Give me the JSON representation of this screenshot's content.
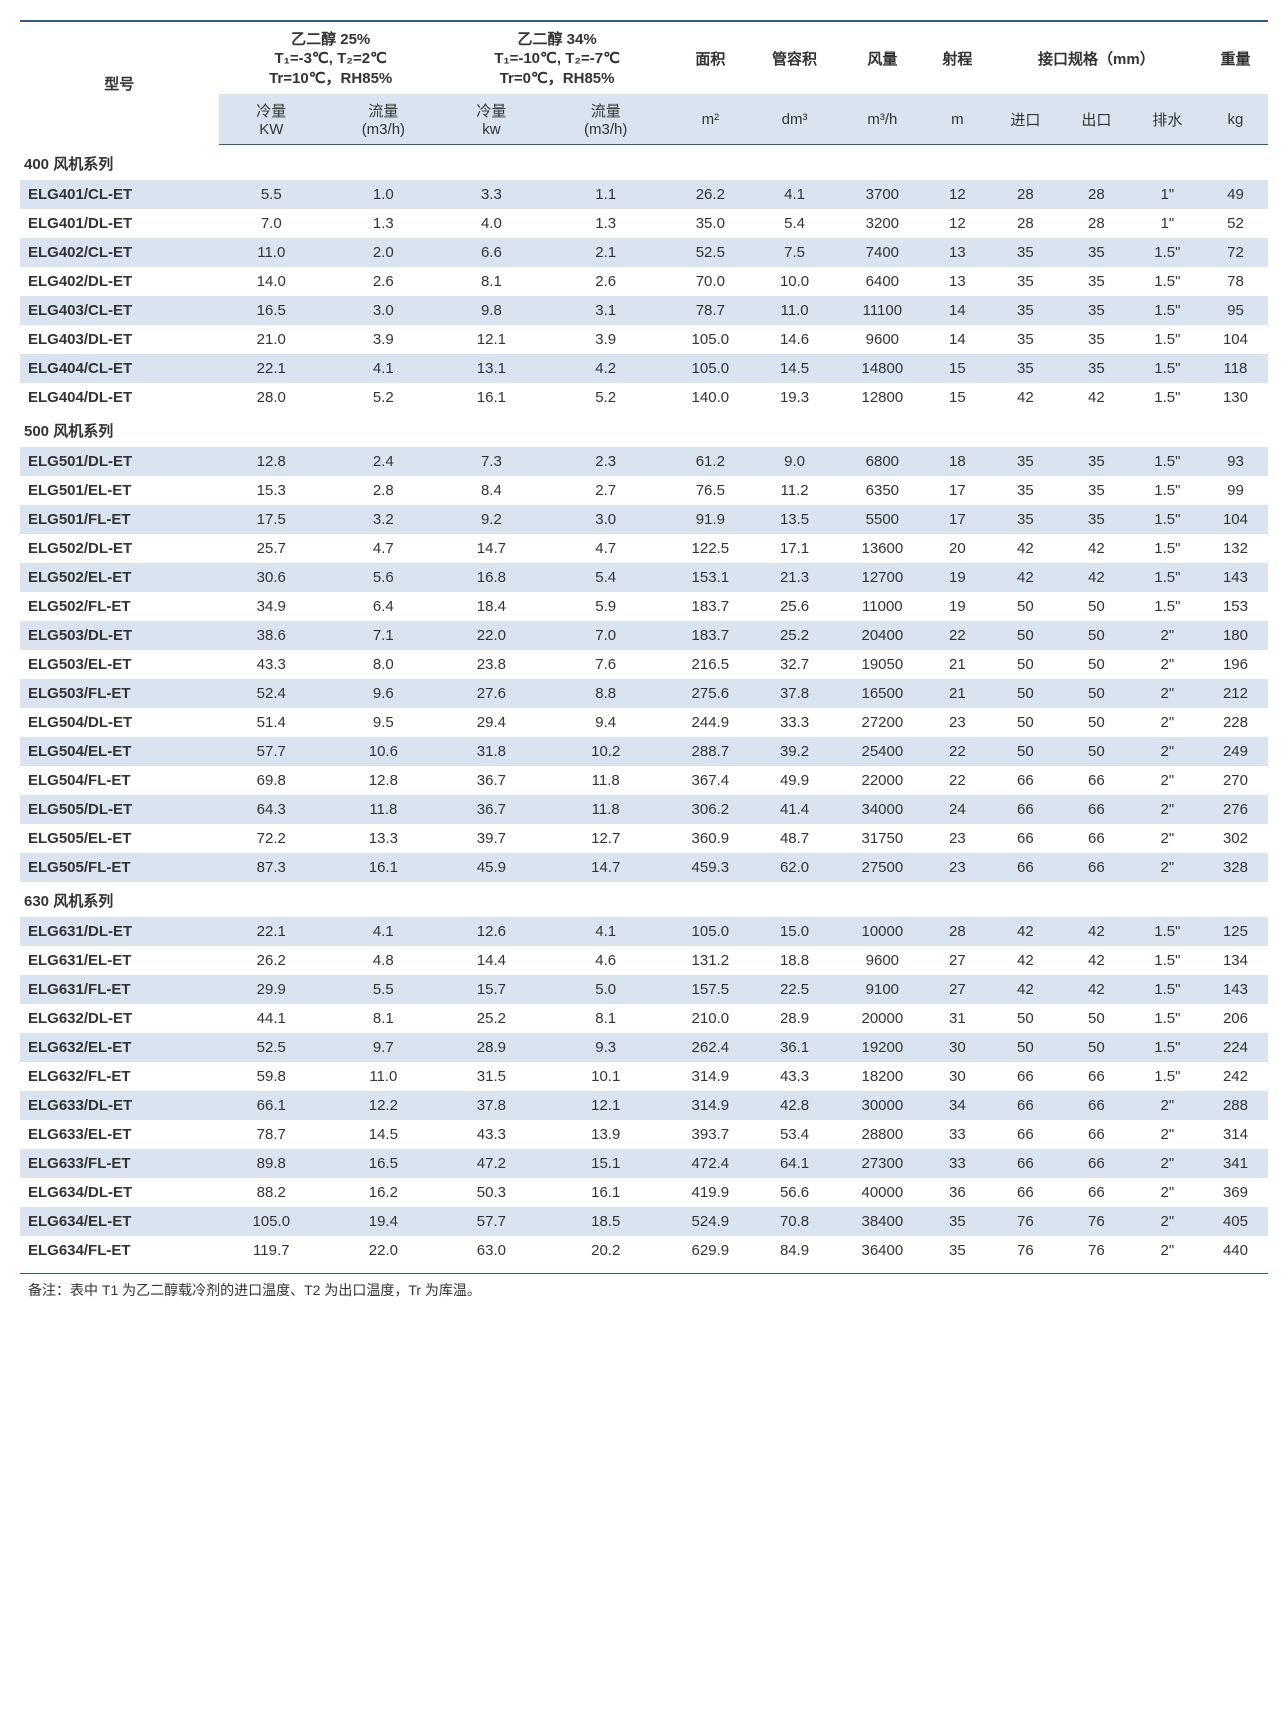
{
  "header": {
    "model": "型号",
    "cond1_title": "乙二醇 25%",
    "cond1_line2": "T₁=-3℃, T₂=2℃",
    "cond1_line3": "Tr=10℃，RH85%",
    "cond2_title": "乙二醇 34%",
    "cond2_line2": "T₁=-10℃, T₂=-7℃",
    "cond2_line3": "Tr=0℃，RH85%",
    "area": "面积",
    "tube_vol": "管容积",
    "air_vol": "风量",
    "throw": "射程",
    "conn_spec": "接口规格（mm）",
    "weight": "重量",
    "cooling": "冷量",
    "cooling_unit1": "KW",
    "cooling_unit2": "kw",
    "flow": "流量",
    "flow_unit": "(m3/h)",
    "area_unit": "m²",
    "tube_unit": "dm³",
    "air_unit": "m³/h",
    "throw_unit": "m",
    "inlet": "进口",
    "outlet": "出口",
    "drain": "排水",
    "weight_unit": "kg"
  },
  "sections": [
    {
      "title": "400 风机系列",
      "rows": [
        {
          "model": "ELG401/CL-ET",
          "c1": "5.5",
          "f1": "1.0",
          "c2": "3.3",
          "f2": "1.1",
          "area": "26.2",
          "tube": "4.1",
          "air": "3700",
          "throw": "12",
          "in": "28",
          "out": "28",
          "drain": "1\"",
          "wt": "49"
        },
        {
          "model": "ELG401/DL-ET",
          "c1": "7.0",
          "f1": "1.3",
          "c2": "4.0",
          "f2": "1.3",
          "area": "35.0",
          "tube": "5.4",
          "air": "3200",
          "throw": "12",
          "in": "28",
          "out": "28",
          "drain": "1\"",
          "wt": "52"
        },
        {
          "model": "ELG402/CL-ET",
          "c1": "11.0",
          "f1": "2.0",
          "c2": "6.6",
          "f2": "2.1",
          "area": "52.5",
          "tube": "7.5",
          "air": "7400",
          "throw": "13",
          "in": "35",
          "out": "35",
          "drain": "1.5\"",
          "wt": "72"
        },
        {
          "model": "ELG402/DL-ET",
          "c1": "14.0",
          "f1": "2.6",
          "c2": "8.1",
          "f2": "2.6",
          "area": "70.0",
          "tube": "10.0",
          "air": "6400",
          "throw": "13",
          "in": "35",
          "out": "35",
          "drain": "1.5\"",
          "wt": "78"
        },
        {
          "model": "ELG403/CL-ET",
          "c1": "16.5",
          "f1": "3.0",
          "c2": "9.8",
          "f2": "3.1",
          "area": "78.7",
          "tube": "11.0",
          "air": "11100",
          "throw": "14",
          "in": "35",
          "out": "35",
          "drain": "1.5\"",
          "wt": "95"
        },
        {
          "model": "ELG403/DL-ET",
          "c1": "21.0",
          "f1": "3.9",
          "c2": "12.1",
          "f2": "3.9",
          "area": "105.0",
          "tube": "14.6",
          "air": "9600",
          "throw": "14",
          "in": "35",
          "out": "35",
          "drain": "1.5\"",
          "wt": "104"
        },
        {
          "model": "ELG404/CL-ET",
          "c1": "22.1",
          "f1": "4.1",
          "c2": "13.1",
          "f2": "4.2",
          "area": "105.0",
          "tube": "14.5",
          "air": "14800",
          "throw": "15",
          "in": "35",
          "out": "35",
          "drain": "1.5\"",
          "wt": "118"
        },
        {
          "model": "ELG404/DL-ET",
          "c1": "28.0",
          "f1": "5.2",
          "c2": "16.1",
          "f2": "5.2",
          "area": "140.0",
          "tube": "19.3",
          "air": "12800",
          "throw": "15",
          "in": "42",
          "out": "42",
          "drain": "1.5\"",
          "wt": "130"
        }
      ]
    },
    {
      "title": "500 风机系列",
      "rows": [
        {
          "model": "ELG501/DL-ET",
          "c1": "12.8",
          "f1": "2.4",
          "c2": "7.3",
          "f2": "2.3",
          "area": "61.2",
          "tube": "9.0",
          "air": "6800",
          "throw": "18",
          "in": "35",
          "out": "35",
          "drain": "1.5\"",
          "wt": "93"
        },
        {
          "model": "ELG501/EL-ET",
          "c1": "15.3",
          "f1": "2.8",
          "c2": "8.4",
          "f2": "2.7",
          "area": "76.5",
          "tube": "11.2",
          "air": "6350",
          "throw": "17",
          "in": "35",
          "out": "35",
          "drain": "1.5\"",
          "wt": "99"
        },
        {
          "model": "ELG501/FL-ET",
          "c1": "17.5",
          "f1": "3.2",
          "c2": "9.2",
          "f2": "3.0",
          "area": "91.9",
          "tube": "13.5",
          "air": "5500",
          "throw": "17",
          "in": "35",
          "out": "35",
          "drain": "1.5\"",
          "wt": "104"
        },
        {
          "model": "ELG502/DL-ET",
          "c1": "25.7",
          "f1": "4.7",
          "c2": "14.7",
          "f2": "4.7",
          "area": "122.5",
          "tube": "17.1",
          "air": "13600",
          "throw": "20",
          "in": "42",
          "out": "42",
          "drain": "1.5\"",
          "wt": "132"
        },
        {
          "model": "ELG502/EL-ET",
          "c1": "30.6",
          "f1": "5.6",
          "c2": "16.8",
          "f2": "5.4",
          "area": "153.1",
          "tube": "21.3",
          "air": "12700",
          "throw": "19",
          "in": "42",
          "out": "42",
          "drain": "1.5\"",
          "wt": "143"
        },
        {
          "model": "ELG502/FL-ET",
          "c1": "34.9",
          "f1": "6.4",
          "c2": "18.4",
          "f2": "5.9",
          "area": "183.7",
          "tube": "25.6",
          "air": "11000",
          "throw": "19",
          "in": "50",
          "out": "50",
          "drain": "1.5\"",
          "wt": "153"
        },
        {
          "model": "ELG503/DL-ET",
          "c1": "38.6",
          "f1": "7.1",
          "c2": "22.0",
          "f2": "7.0",
          "area": "183.7",
          "tube": "25.2",
          "air": "20400",
          "throw": "22",
          "in": "50",
          "out": "50",
          "drain": "2\"",
          "wt": "180"
        },
        {
          "model": "ELG503/EL-ET",
          "c1": "43.3",
          "f1": "8.0",
          "c2": "23.8",
          "f2": "7.6",
          "area": "216.5",
          "tube": "32.7",
          "air": "19050",
          "throw": "21",
          "in": "50",
          "out": "50",
          "drain": "2\"",
          "wt": "196"
        },
        {
          "model": "ELG503/FL-ET",
          "c1": "52.4",
          "f1": "9.6",
          "c2": "27.6",
          "f2": "8.8",
          "area": "275.6",
          "tube": "37.8",
          "air": "16500",
          "throw": "21",
          "in": "50",
          "out": "50",
          "drain": "2\"",
          "wt": "212"
        },
        {
          "model": "ELG504/DL-ET",
          "c1": "51.4",
          "f1": "9.5",
          "c2": "29.4",
          "f2": "9.4",
          "area": "244.9",
          "tube": "33.3",
          "air": "27200",
          "throw": "23",
          "in": "50",
          "out": "50",
          "drain": "2\"",
          "wt": "228"
        },
        {
          "model": "ELG504/EL-ET",
          "c1": "57.7",
          "f1": "10.6",
          "c2": "31.8",
          "f2": "10.2",
          "area": "288.7",
          "tube": "39.2",
          "air": "25400",
          "throw": "22",
          "in": "50",
          "out": "50",
          "drain": "2\"",
          "wt": "249"
        },
        {
          "model": "ELG504/FL-ET",
          "c1": "69.8",
          "f1": "12.8",
          "c2": "36.7",
          "f2": "11.8",
          "area": "367.4",
          "tube": "49.9",
          "air": "22000",
          "throw": "22",
          "in": "66",
          "out": "66",
          "drain": "2\"",
          "wt": "270"
        },
        {
          "model": "ELG505/DL-ET",
          "c1": "64.3",
          "f1": "11.8",
          "c2": "36.7",
          "f2": "11.8",
          "area": "306.2",
          "tube": "41.4",
          "air": "34000",
          "throw": "24",
          "in": "66",
          "out": "66",
          "drain": "2\"",
          "wt": "276"
        },
        {
          "model": "ELG505/EL-ET",
          "c1": "72.2",
          "f1": "13.3",
          "c2": "39.7",
          "f2": "12.7",
          "area": "360.9",
          "tube": "48.7",
          "air": "31750",
          "throw": "23",
          "in": "66",
          "out": "66",
          "drain": "2\"",
          "wt": "302"
        },
        {
          "model": "ELG505/FL-ET",
          "c1": "87.3",
          "f1": "16.1",
          "c2": "45.9",
          "f2": "14.7",
          "area": "459.3",
          "tube": "62.0",
          "air": "27500",
          "throw": "23",
          "in": "66",
          "out": "66",
          "drain": "2\"",
          "wt": "328"
        }
      ]
    },
    {
      "title": "630 风机系列",
      "rows": [
        {
          "model": "ELG631/DL-ET",
          "c1": "22.1",
          "f1": "4.1",
          "c2": "12.6",
          "f2": "4.1",
          "area": "105.0",
          "tube": "15.0",
          "air": "10000",
          "throw": "28",
          "in": "42",
          "out": "42",
          "drain": "1.5\"",
          "wt": "125"
        },
        {
          "model": "ELG631/EL-ET",
          "c1": "26.2",
          "f1": "4.8",
          "c2": "14.4",
          "f2": "4.6",
          "area": "131.2",
          "tube": "18.8",
          "air": "9600",
          "throw": "27",
          "in": "42",
          "out": "42",
          "drain": "1.5\"",
          "wt": "134"
        },
        {
          "model": "ELG631/FL-ET",
          "c1": "29.9",
          "f1": "5.5",
          "c2": "15.7",
          "f2": "5.0",
          "area": "157.5",
          "tube": "22.5",
          "air": "9100",
          "throw": "27",
          "in": "42",
          "out": "42",
          "drain": "1.5\"",
          "wt": "143"
        },
        {
          "model": "ELG632/DL-ET",
          "c1": "44.1",
          "f1": "8.1",
          "c2": "25.2",
          "f2": "8.1",
          "area": "210.0",
          "tube": "28.9",
          "air": "20000",
          "throw": "31",
          "in": "50",
          "out": "50",
          "drain": "1.5\"",
          "wt": "206"
        },
        {
          "model": "ELG632/EL-ET",
          "c1": "52.5",
          "f1": "9.7",
          "c2": "28.9",
          "f2": "9.3",
          "area": "262.4",
          "tube": "36.1",
          "air": "19200",
          "throw": "30",
          "in": "50",
          "out": "50",
          "drain": "1.5\"",
          "wt": "224"
        },
        {
          "model": "ELG632/FL-ET",
          "c1": "59.8",
          "f1": "11.0",
          "c2": "31.5",
          "f2": "10.1",
          "area": "314.9",
          "tube": "43.3",
          "air": "18200",
          "throw": "30",
          "in": "66",
          "out": "66",
          "drain": "1.5\"",
          "wt": "242"
        },
        {
          "model": "ELG633/DL-ET",
          "c1": "66.1",
          "f1": "12.2",
          "c2": "37.8",
          "f2": "12.1",
          "area": "314.9",
          "tube": "42.8",
          "air": "30000",
          "throw": "34",
          "in": "66",
          "out": "66",
          "drain": "2\"",
          "wt": "288"
        },
        {
          "model": "ELG633/EL-ET",
          "c1": "78.7",
          "f1": "14.5",
          "c2": "43.3",
          "f2": "13.9",
          "area": "393.7",
          "tube": "53.4",
          "air": "28800",
          "throw": "33",
          "in": "66",
          "out": "66",
          "drain": "2\"",
          "wt": "314"
        },
        {
          "model": "ELG633/FL-ET",
          "c1": "89.8",
          "f1": "16.5",
          "c2": "47.2",
          "f2": "15.1",
          "area": "472.4",
          "tube": "64.1",
          "air": "27300",
          "throw": "33",
          "in": "66",
          "out": "66",
          "drain": "2\"",
          "wt": "341"
        },
        {
          "model": "ELG634/DL-ET",
          "c1": "88.2",
          "f1": "16.2",
          "c2": "50.3",
          "f2": "16.1",
          "area": "419.9",
          "tube": "56.6",
          "air": "40000",
          "throw": "36",
          "in": "66",
          "out": "66",
          "drain": "2\"",
          "wt": "369"
        },
        {
          "model": "ELG634/EL-ET",
          "c1": "105.0",
          "f1": "19.4",
          "c2": "57.7",
          "f2": "18.5",
          "area": "524.9",
          "tube": "70.8",
          "air": "38400",
          "throw": "35",
          "in": "76",
          "out": "76",
          "drain": "2\"",
          "wt": "405"
        },
        {
          "model": "ELG634/FL-ET",
          "c1": "119.7",
          "f1": "22.0",
          "c2": "63.0",
          "f2": "20.2",
          "area": "629.9",
          "tube": "84.9",
          "air": "36400",
          "throw": "35",
          "in": "76",
          "out": "76",
          "drain": "2\"",
          "wt": "440"
        }
      ]
    }
  ],
  "footnote": "备注：表中 T1 为乙二醇载冷剂的进口温度、T2 为出口温度，Tr 为库温。"
}
